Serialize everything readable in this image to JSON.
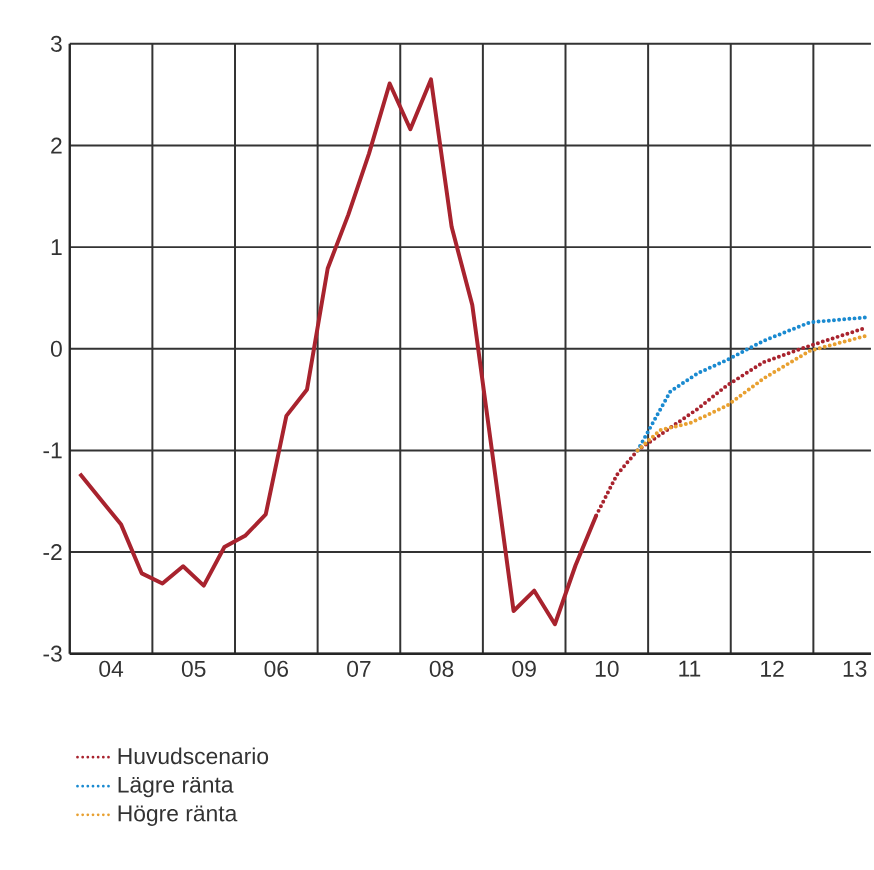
{
  "chart_data": {
    "type": "line",
    "xlim": [
      "2004-01-01",
      "2013-09-12"
    ],
    "ylim": [
      -3,
      3
    ],
    "yticks": [
      -3,
      -2,
      -1,
      0,
      1,
      2,
      3
    ],
    "xticks": [
      {
        "value": "2005-01-01",
        "label": null
      },
      {
        "value": "2006-01-01",
        "label": null
      },
      {
        "value": "2007-01-01",
        "label": null
      },
      {
        "value": "2008-01-01",
        "label": null
      },
      {
        "value": "2009-01-01",
        "label": null
      },
      {
        "value": "2010-01-01",
        "label": null
      },
      {
        "value": "2011-01-01",
        "label": null
      },
      {
        "value": "2012-01-01",
        "label": null
      },
      {
        "value": "2013-01-01",
        "label": null
      },
      {
        "value": "2004-07-01",
        "label": "04"
      },
      {
        "value": "2005-07-01",
        "label": "05"
      },
      {
        "value": "2006-07-01",
        "label": "06"
      },
      {
        "value": "2007-07-01",
        "label": "07"
      },
      {
        "value": "2008-07-01",
        "label": "08"
      },
      {
        "value": "2009-07-01",
        "label": "09"
      },
      {
        "value": "2010-07-01",
        "label": "10"
      },
      {
        "value": "2011-07-01",
        "label": "11"
      },
      {
        "value": "2012-07-01",
        "label": "12"
      },
      {
        "value": "2013-07-01",
        "label": "13"
      }
    ],
    "grid": true,
    "legend": "bottom",
    "marker": "none",
    "series": [
      {
        "color": "#a8232e",
        "line_style": "solid",
        "x": [
          "2004-02-15",
          "2004-08-15",
          "2004-11-15",
          "2005-02-15",
          "2005-05-15",
          "2005-08-15",
          "2005-11-15",
          "2006-02-15",
          "2006-05-15",
          "2006-08-15",
          "2006-11-15",
          "2007-02-15",
          "2007-05-15",
          "2007-08-15",
          "2007-11-15",
          "2008-02-15",
          "2008-05-15",
          "2008-08-15",
          "2008-11-15",
          "2009-05-15",
          "2009-08-15",
          "2009-11-15",
          "2010-02-15",
          "2010-05-15"
        ],
        "values": [
          -1.23,
          -1.73,
          -2.21,
          -2.31,
          -2.14,
          -2.33,
          -1.95,
          -1.84,
          -1.63,
          -0.66,
          -0.4,
          0.79,
          1.32,
          1.92,
          2.61,
          2.16,
          2.65,
          1.2,
          0.43,
          -2.58,
          -2.38,
          -2.71,
          -2.13,
          -1.64
        ]
      },
      {
        "name": "Huvudscenario",
        "color": "#a8232e",
        "line_style": "dotted",
        "x": [
          "2010-05-15",
          "2010-08-15",
          "2010-11-15",
          "2011-08-08",
          "2011-12-15",
          "2012-05-26",
          "2012-12-16",
          "2013-08-25"
        ],
        "values": [
          -1.64,
          -1.24,
          -1.0,
          -0.59,
          -0.36,
          -0.13,
          0.03,
          0.21
        ]
      },
      {
        "name": "Lägre ränta",
        "color": "#1a8ad0",
        "line_style": "dotted",
        "x": [
          "2010-11-15",
          "2011-04-08",
          "2011-08-08",
          "2011-12-15",
          "2012-05-26",
          "2012-12-16",
          "2013-08-25"
        ],
        "values": [
          -1.0,
          -0.42,
          -0.24,
          -0.11,
          0.08,
          0.26,
          0.31
        ]
      },
      {
        "name": "Högre ränta",
        "color": "#e8a030",
        "line_style": "dotted",
        "x": [
          "2010-11-15",
          "2011-02-24",
          "2011-07-05",
          "2011-12-15",
          "2012-05-26",
          "2012-12-16",
          "2013-08-25"
        ],
        "values": [
          -1.0,
          -0.8,
          -0.73,
          -0.56,
          -0.29,
          -0.02,
          0.13
        ]
      }
    ]
  }
}
